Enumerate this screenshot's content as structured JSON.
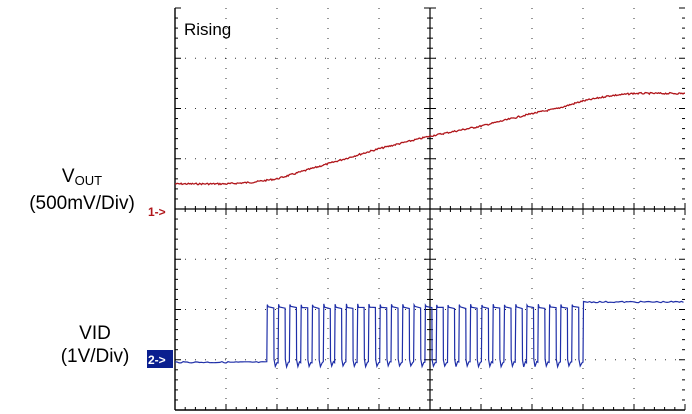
{
  "labels": {
    "title": "Rising",
    "ch1_name_main": "V",
    "ch1_name_sub": "OUT",
    "ch1_scale": "(500mV/Div)",
    "ch2_name": "VID",
    "ch2_scale": "(1V/Div)",
    "ch1_marker": "1->",
    "ch2_marker": "2->"
  },
  "colors": {
    "ch1": "#b0151a",
    "ch2": "#1f2fa8",
    "ch2_marker_bg": "#0a1f8f",
    "grid": "#000000"
  },
  "chart_data": {
    "type": "line",
    "title": "Rising",
    "x_divisions": 10,
    "y_divisions": 8,
    "grid": true,
    "series": [
      {
        "name": "VOUT",
        "unit": "500mV/Div",
        "reference_level_div": 3.0,
        "points": [
          [
            0.0,
            4.5
          ],
          [
            1.0,
            4.5
          ],
          [
            1.5,
            4.53
          ],
          [
            2.0,
            4.6
          ],
          [
            2.5,
            4.75
          ],
          [
            3.0,
            4.9
          ],
          [
            4.0,
            5.2
          ],
          [
            5.0,
            5.45
          ],
          [
            6.0,
            5.65
          ],
          [
            7.0,
            5.9
          ],
          [
            7.5,
            6.0
          ],
          [
            8.0,
            6.15
          ],
          [
            8.5,
            6.25
          ],
          [
            9.0,
            6.3
          ],
          [
            10.0,
            6.3
          ]
        ]
      },
      {
        "name": "VID",
        "unit": "1V/Div",
        "reference_level_div": 0.95,
        "low_level_div": 0.95,
        "high_level_div": 2.05,
        "final_level_div": 2.15,
        "toggle_start_div": 1.8,
        "toggle_end_div": 8.0,
        "pulse_count": 28
      }
    ]
  }
}
